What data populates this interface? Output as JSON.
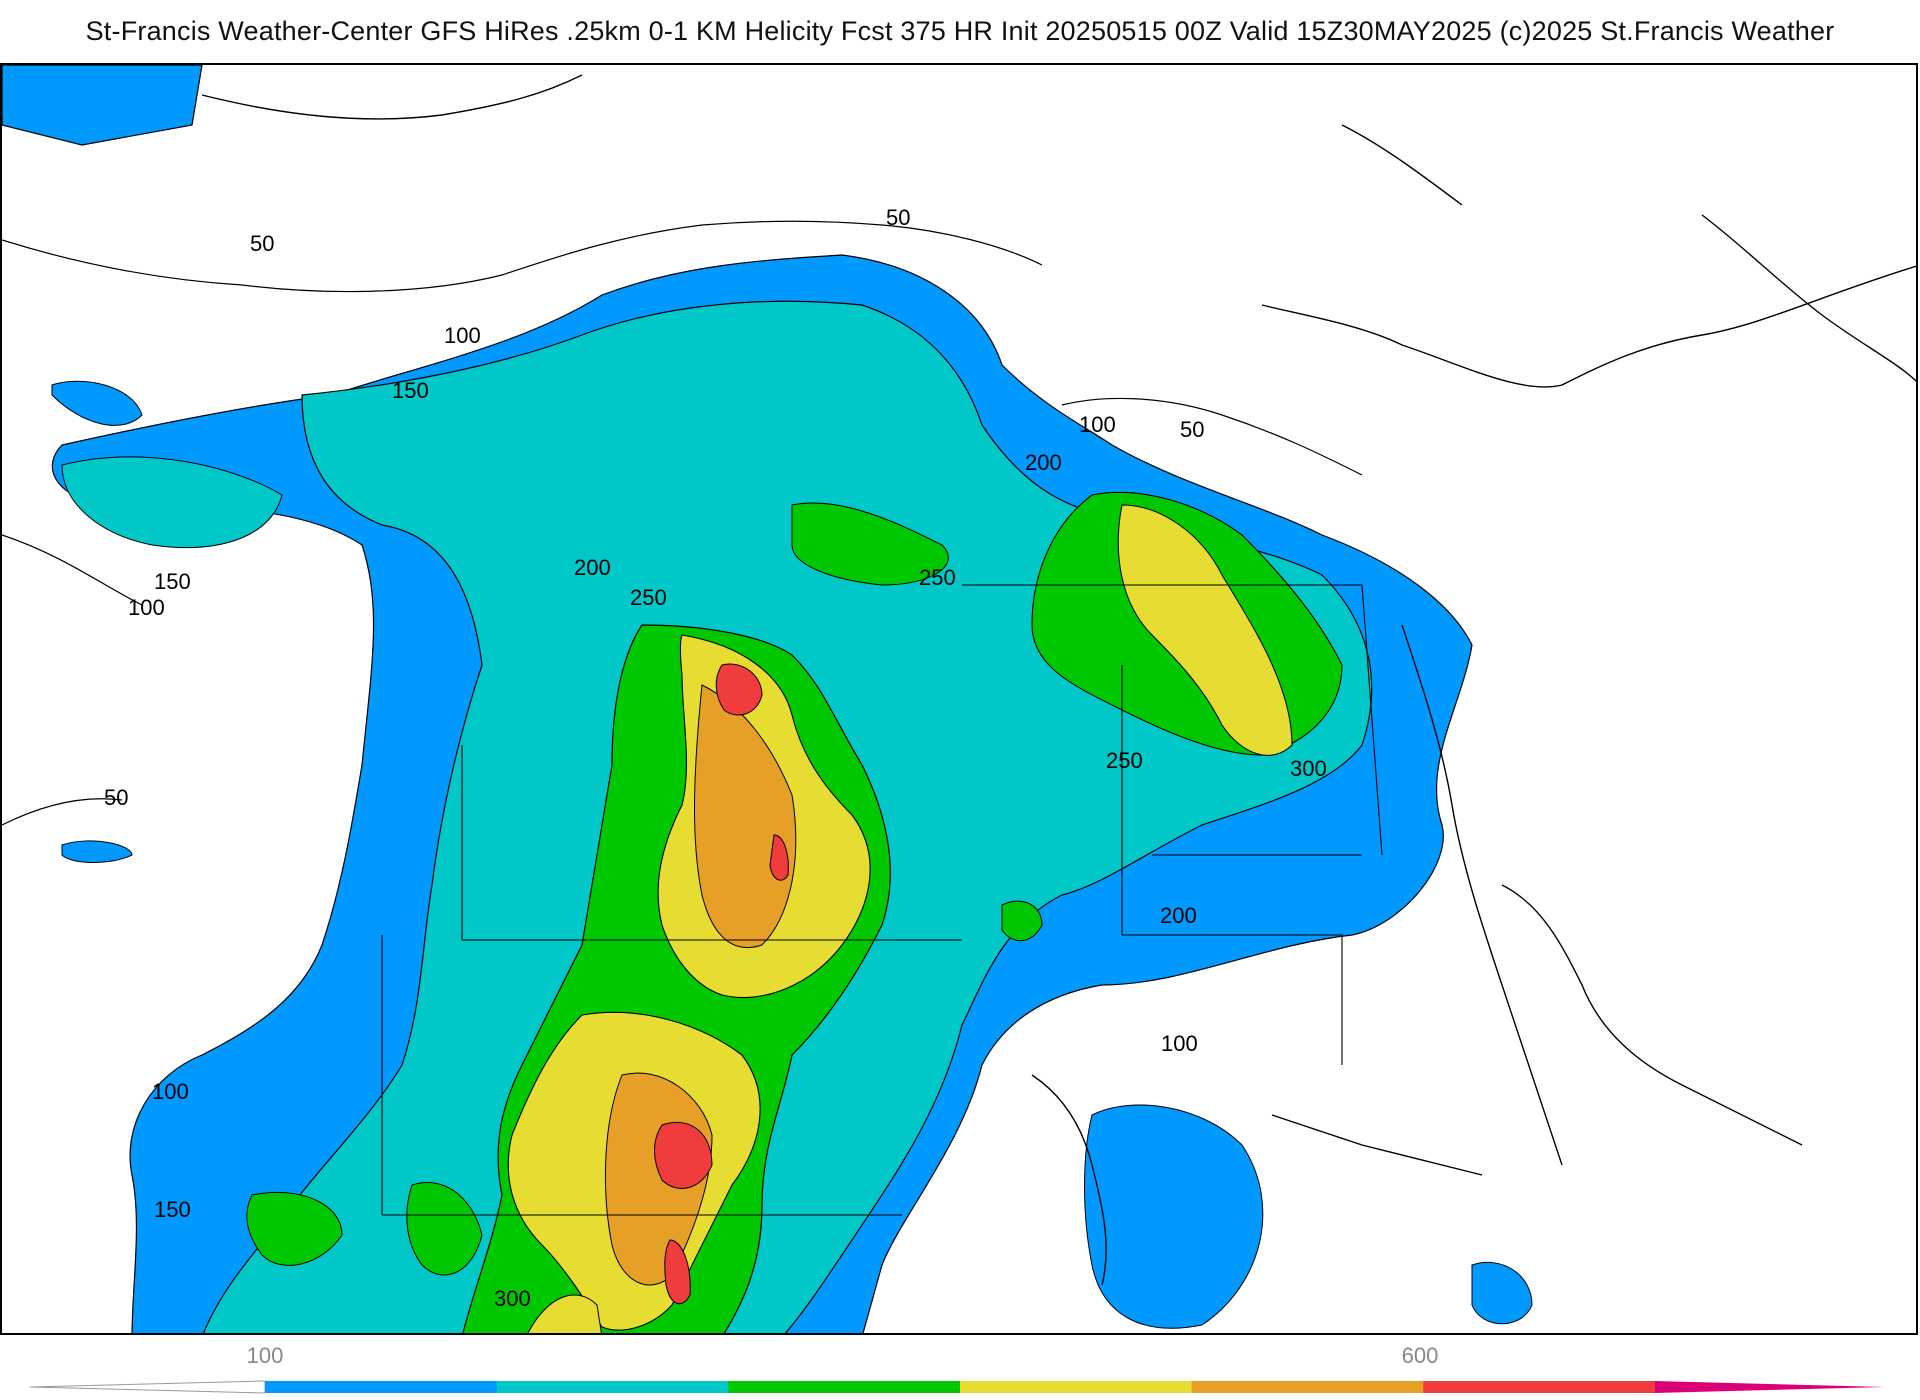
{
  "header": {
    "title": "St-Francis Weather-Center GFS HiRes .25km 0-1 KM Helicity Fcst 375 HR Init 20250515 00Z  Valid 15Z30MAY2025    (c)2025 St.Francis Weather"
  },
  "map": {
    "field": "0-1 KM Helicity",
    "contour_labels": [
      "50",
      "50",
      "50",
      "50",
      "100",
      "100",
      "100",
      "100",
      "100",
      "150",
      "150",
      "150",
      "200",
      "200",
      "200",
      "250",
      "250",
      "250",
      "300",
      "300"
    ]
  },
  "legend": {
    "ticks": [
      "100",
      "600"
    ],
    "colors": [
      "#0099ff",
      "#00c8c8",
      "#00c800",
      "#e6dc32",
      "#e6a028",
      "#f03c3c",
      "#dc0078"
    ]
  }
}
